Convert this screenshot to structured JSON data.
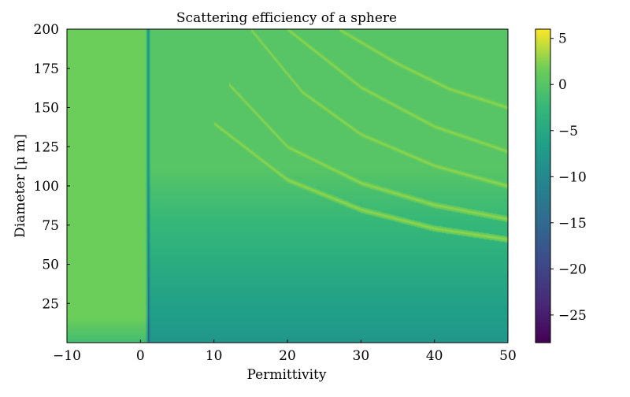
{
  "chart_data": {
    "type": "heatmap",
    "title": "Scattering efficiency of a sphere",
    "xlabel": "Permittivity",
    "ylabel": "Diameter [μ m]",
    "xlim": [
      -10,
      50
    ],
    "ylim": [
      0,
      200
    ],
    "xticks": [
      -10,
      0,
      10,
      20,
      30,
      40,
      50
    ],
    "yticks": [
      25,
      50,
      75,
      100,
      125,
      150,
      175,
      200
    ],
    "colormap": "viridis",
    "colorbar": {
      "range": [
        -28,
        6
      ],
      "ticks": [
        5,
        0,
        -5,
        -10,
        -15,
        -20,
        -25
      ],
      "tick_labels": [
        "5",
        "0",
        "−5",
        "−10",
        "−15",
        "−20",
        "−25"
      ]
    },
    "features": {
      "dark_vertical_line_at_permittivity": 1,
      "background_low_diameter_value": -8,
      "background_high_diameter_value": 0,
      "resonance_curves": [
        {
          "x": [
            10,
            20,
            30,
            40,
            50
          ],
          "y": [
            140,
            104,
            85,
            73,
            66
          ]
        },
        {
          "x": [
            12,
            20,
            30,
            40,
            50
          ],
          "y": [
            165,
            125,
            102,
            88,
            79
          ]
        },
        {
          "x": [
            15,
            22,
            30,
            40,
            50
          ],
          "y": [
            200,
            160,
            133,
            113,
            100
          ]
        },
        {
          "x": [
            20,
            30,
            40,
            50
          ],
          "y": [
            200,
            163,
            138,
            122
          ]
        },
        {
          "x": [
            27,
            35,
            42,
            50
          ],
          "y": [
            200,
            178,
            162,
            150
          ]
        }
      ]
    }
  }
}
